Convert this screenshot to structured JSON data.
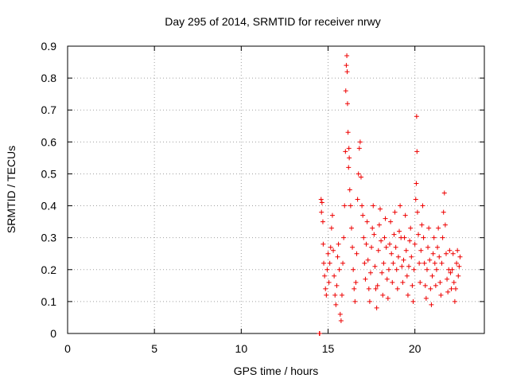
{
  "chart_data": {
    "type": "scatter",
    "title": "Day 295 of 2014, SRMTID for receiver nrwy",
    "xlabel": "GPS time / hours",
    "ylabel": "SRMTID / TECUs",
    "xlim": [
      0,
      24
    ],
    "ylim": [
      0,
      0.9
    ],
    "xticks": [
      0,
      5,
      10,
      15,
      20
    ],
    "xtick_labels": [
      "0",
      "5",
      "10",
      "15",
      "20"
    ],
    "yticks": [
      0,
      0.1,
      0.2,
      0.3,
      0.4,
      0.5,
      0.6,
      0.7,
      0.8,
      0.9
    ],
    "ytick_labels": [
      "0",
      "0.1",
      "0.2",
      "0.3",
      "0.4",
      "0.5",
      "0.6",
      "0.7",
      "0.8",
      "0.9"
    ],
    "grid": true,
    "marker": "plus",
    "color": "#ee0000",
    "series": [
      {
        "name": "SRMTID",
        "points": [
          [
            14.5,
            0.0
          ],
          [
            14.52,
            0.0
          ],
          [
            14.6,
            0.42
          ],
          [
            14.62,
            0.38
          ],
          [
            14.65,
            0.41
          ],
          [
            14.7,
            0.35
          ],
          [
            14.72,
            0.28
          ],
          [
            14.75,
            0.22
          ],
          [
            14.8,
            0.18
          ],
          [
            14.85,
            0.14
          ],
          [
            14.9,
            0.12
          ],
          [
            14.95,
            0.2
          ],
          [
            15.0,
            0.25
          ],
          [
            15.05,
            0.16
          ],
          [
            15.1,
            0.22
          ],
          [
            15.15,
            0.27
          ],
          [
            15.2,
            0.33
          ],
          [
            15.25,
            0.37
          ],
          [
            15.3,
            0.26
          ],
          [
            15.35,
            0.18
          ],
          [
            15.4,
            0.12
          ],
          [
            15.45,
            0.09
          ],
          [
            15.5,
            0.15
          ],
          [
            15.55,
            0.24
          ],
          [
            15.6,
            0.28
          ],
          [
            15.65,
            0.2
          ],
          [
            15.7,
            0.06
          ],
          [
            15.75,
            0.04
          ],
          [
            15.8,
            0.12
          ],
          [
            15.85,
            0.22
          ],
          [
            15.9,
            0.3
          ],
          [
            15.95,
            0.4
          ],
          [
            16.0,
            0.57
          ],
          [
            16.02,
            0.76
          ],
          [
            16.05,
            0.84
          ],
          [
            16.08,
            0.87
          ],
          [
            16.1,
            0.82
          ],
          [
            16.12,
            0.72
          ],
          [
            16.15,
            0.63
          ],
          [
            16.18,
            0.52
          ],
          [
            16.2,
            0.58
          ],
          [
            16.22,
            0.55
          ],
          [
            16.25,
            0.45
          ],
          [
            16.3,
            0.4
          ],
          [
            16.35,
            0.33
          ],
          [
            16.4,
            0.27
          ],
          [
            16.45,
            0.2
          ],
          [
            16.5,
            0.14
          ],
          [
            16.55,
            0.1
          ],
          [
            16.6,
            0.16
          ],
          [
            16.65,
            0.25
          ],
          [
            16.7,
            0.42
          ],
          [
            16.75,
            0.5
          ],
          [
            16.8,
            0.58
          ],
          [
            16.85,
            0.6
          ],
          [
            16.9,
            0.49
          ],
          [
            16.95,
            0.4
          ],
          [
            17.0,
            0.37
          ],
          [
            17.05,
            0.3
          ],
          [
            17.1,
            0.22
          ],
          [
            17.15,
            0.17
          ],
          [
            17.2,
            0.28
          ],
          [
            17.25,
            0.35
          ],
          [
            17.3,
            0.23
          ],
          [
            17.35,
            0.14
          ],
          [
            17.4,
            0.1
          ],
          [
            17.45,
            0.19
          ],
          [
            17.5,
            0.27
          ],
          [
            17.55,
            0.33
          ],
          [
            17.6,
            0.4
          ],
          [
            17.65,
            0.31
          ],
          [
            17.7,
            0.21
          ],
          [
            17.75,
            0.14
          ],
          [
            17.8,
            0.08
          ],
          [
            17.85,
            0.15
          ],
          [
            17.9,
            0.26
          ],
          [
            17.95,
            0.34
          ],
          [
            18.0,
            0.39
          ],
          [
            18.05,
            0.29
          ],
          [
            18.1,
            0.19
          ],
          [
            18.15,
            0.12
          ],
          [
            18.2,
            0.22
          ],
          [
            18.25,
            0.3
          ],
          [
            18.3,
            0.36
          ],
          [
            18.35,
            0.27
          ],
          [
            18.4,
            0.17
          ],
          [
            18.45,
            0.11
          ],
          [
            18.5,
            0.2
          ],
          [
            18.55,
            0.28
          ],
          [
            18.6,
            0.35
          ],
          [
            18.65,
            0.25
          ],
          [
            18.7,
            0.16
          ],
          [
            18.75,
            0.22
          ],
          [
            18.8,
            0.31
          ],
          [
            18.85,
            0.38
          ],
          [
            18.9,
            0.27
          ],
          [
            18.95,
            0.2
          ],
          [
            19.0,
            0.14
          ],
          [
            19.05,
            0.24
          ],
          [
            19.1,
            0.32
          ],
          [
            19.15,
            0.4
          ],
          [
            19.2,
            0.3
          ],
          [
            19.25,
            0.21
          ],
          [
            19.3,
            0.16
          ],
          [
            19.35,
            0.23
          ],
          [
            19.4,
            0.3
          ],
          [
            19.45,
            0.37
          ],
          [
            19.5,
            0.26
          ],
          [
            19.55,
            0.18
          ],
          [
            19.6,
            0.12
          ],
          [
            19.65,
            0.21
          ],
          [
            19.7,
            0.29
          ],
          [
            19.75,
            0.33
          ],
          [
            19.8,
            0.24
          ],
          [
            19.85,
            0.15
          ],
          [
            19.9,
            0.1
          ],
          [
            19.95,
            0.2
          ],
          [
            20.0,
            0.28
          ],
          [
            20.05,
            0.42
          ],
          [
            20.08,
            0.47
          ],
          [
            20.1,
            0.68
          ],
          [
            20.12,
            0.57
          ],
          [
            20.15,
            0.38
          ],
          [
            20.2,
            0.31
          ],
          [
            20.25,
            0.22
          ],
          [
            20.3,
            0.16
          ],
          [
            20.35,
            0.26
          ],
          [
            20.4,
            0.34
          ],
          [
            20.45,
            0.4
          ],
          [
            20.5,
            0.3
          ],
          [
            20.55,
            0.22
          ],
          [
            20.6,
            0.15
          ],
          [
            20.65,
            0.11
          ],
          [
            20.7,
            0.2
          ],
          [
            20.75,
            0.27
          ],
          [
            20.8,
            0.33
          ],
          [
            20.85,
            0.23
          ],
          [
            20.9,
            0.14
          ],
          [
            20.95,
            0.09
          ],
          [
            21.0,
            0.18
          ],
          [
            21.05,
            0.25
          ],
          [
            21.1,
            0.3
          ],
          [
            21.15,
            0.22
          ],
          [
            21.2,
            0.15
          ],
          [
            21.25,
            0.2
          ],
          [
            21.3,
            0.27
          ],
          [
            21.35,
            0.33
          ],
          [
            21.4,
            0.24
          ],
          [
            21.45,
            0.16
          ],
          [
            21.5,
            0.12
          ],
          [
            21.55,
            0.22
          ],
          [
            21.6,
            0.3
          ],
          [
            21.65,
            0.38
          ],
          [
            21.7,
            0.44
          ],
          [
            21.75,
            0.34
          ],
          [
            21.8,
            0.25
          ],
          [
            21.85,
            0.17
          ],
          [
            21.9,
            0.13
          ],
          [
            21.95,
            0.2
          ],
          [
            22.0,
            0.26
          ],
          [
            22.05,
            0.19
          ],
          [
            22.1,
            0.14
          ],
          [
            22.15,
            0.2
          ],
          [
            22.2,
            0.25
          ],
          [
            22.25,
            0.16
          ],
          [
            22.3,
            0.1
          ],
          [
            22.35,
            0.14
          ],
          [
            22.4,
            0.22
          ],
          [
            22.45,
            0.26
          ],
          [
            22.5,
            0.18
          ],
          [
            22.55,
            0.21
          ],
          [
            22.6,
            0.24
          ]
        ]
      }
    ]
  }
}
